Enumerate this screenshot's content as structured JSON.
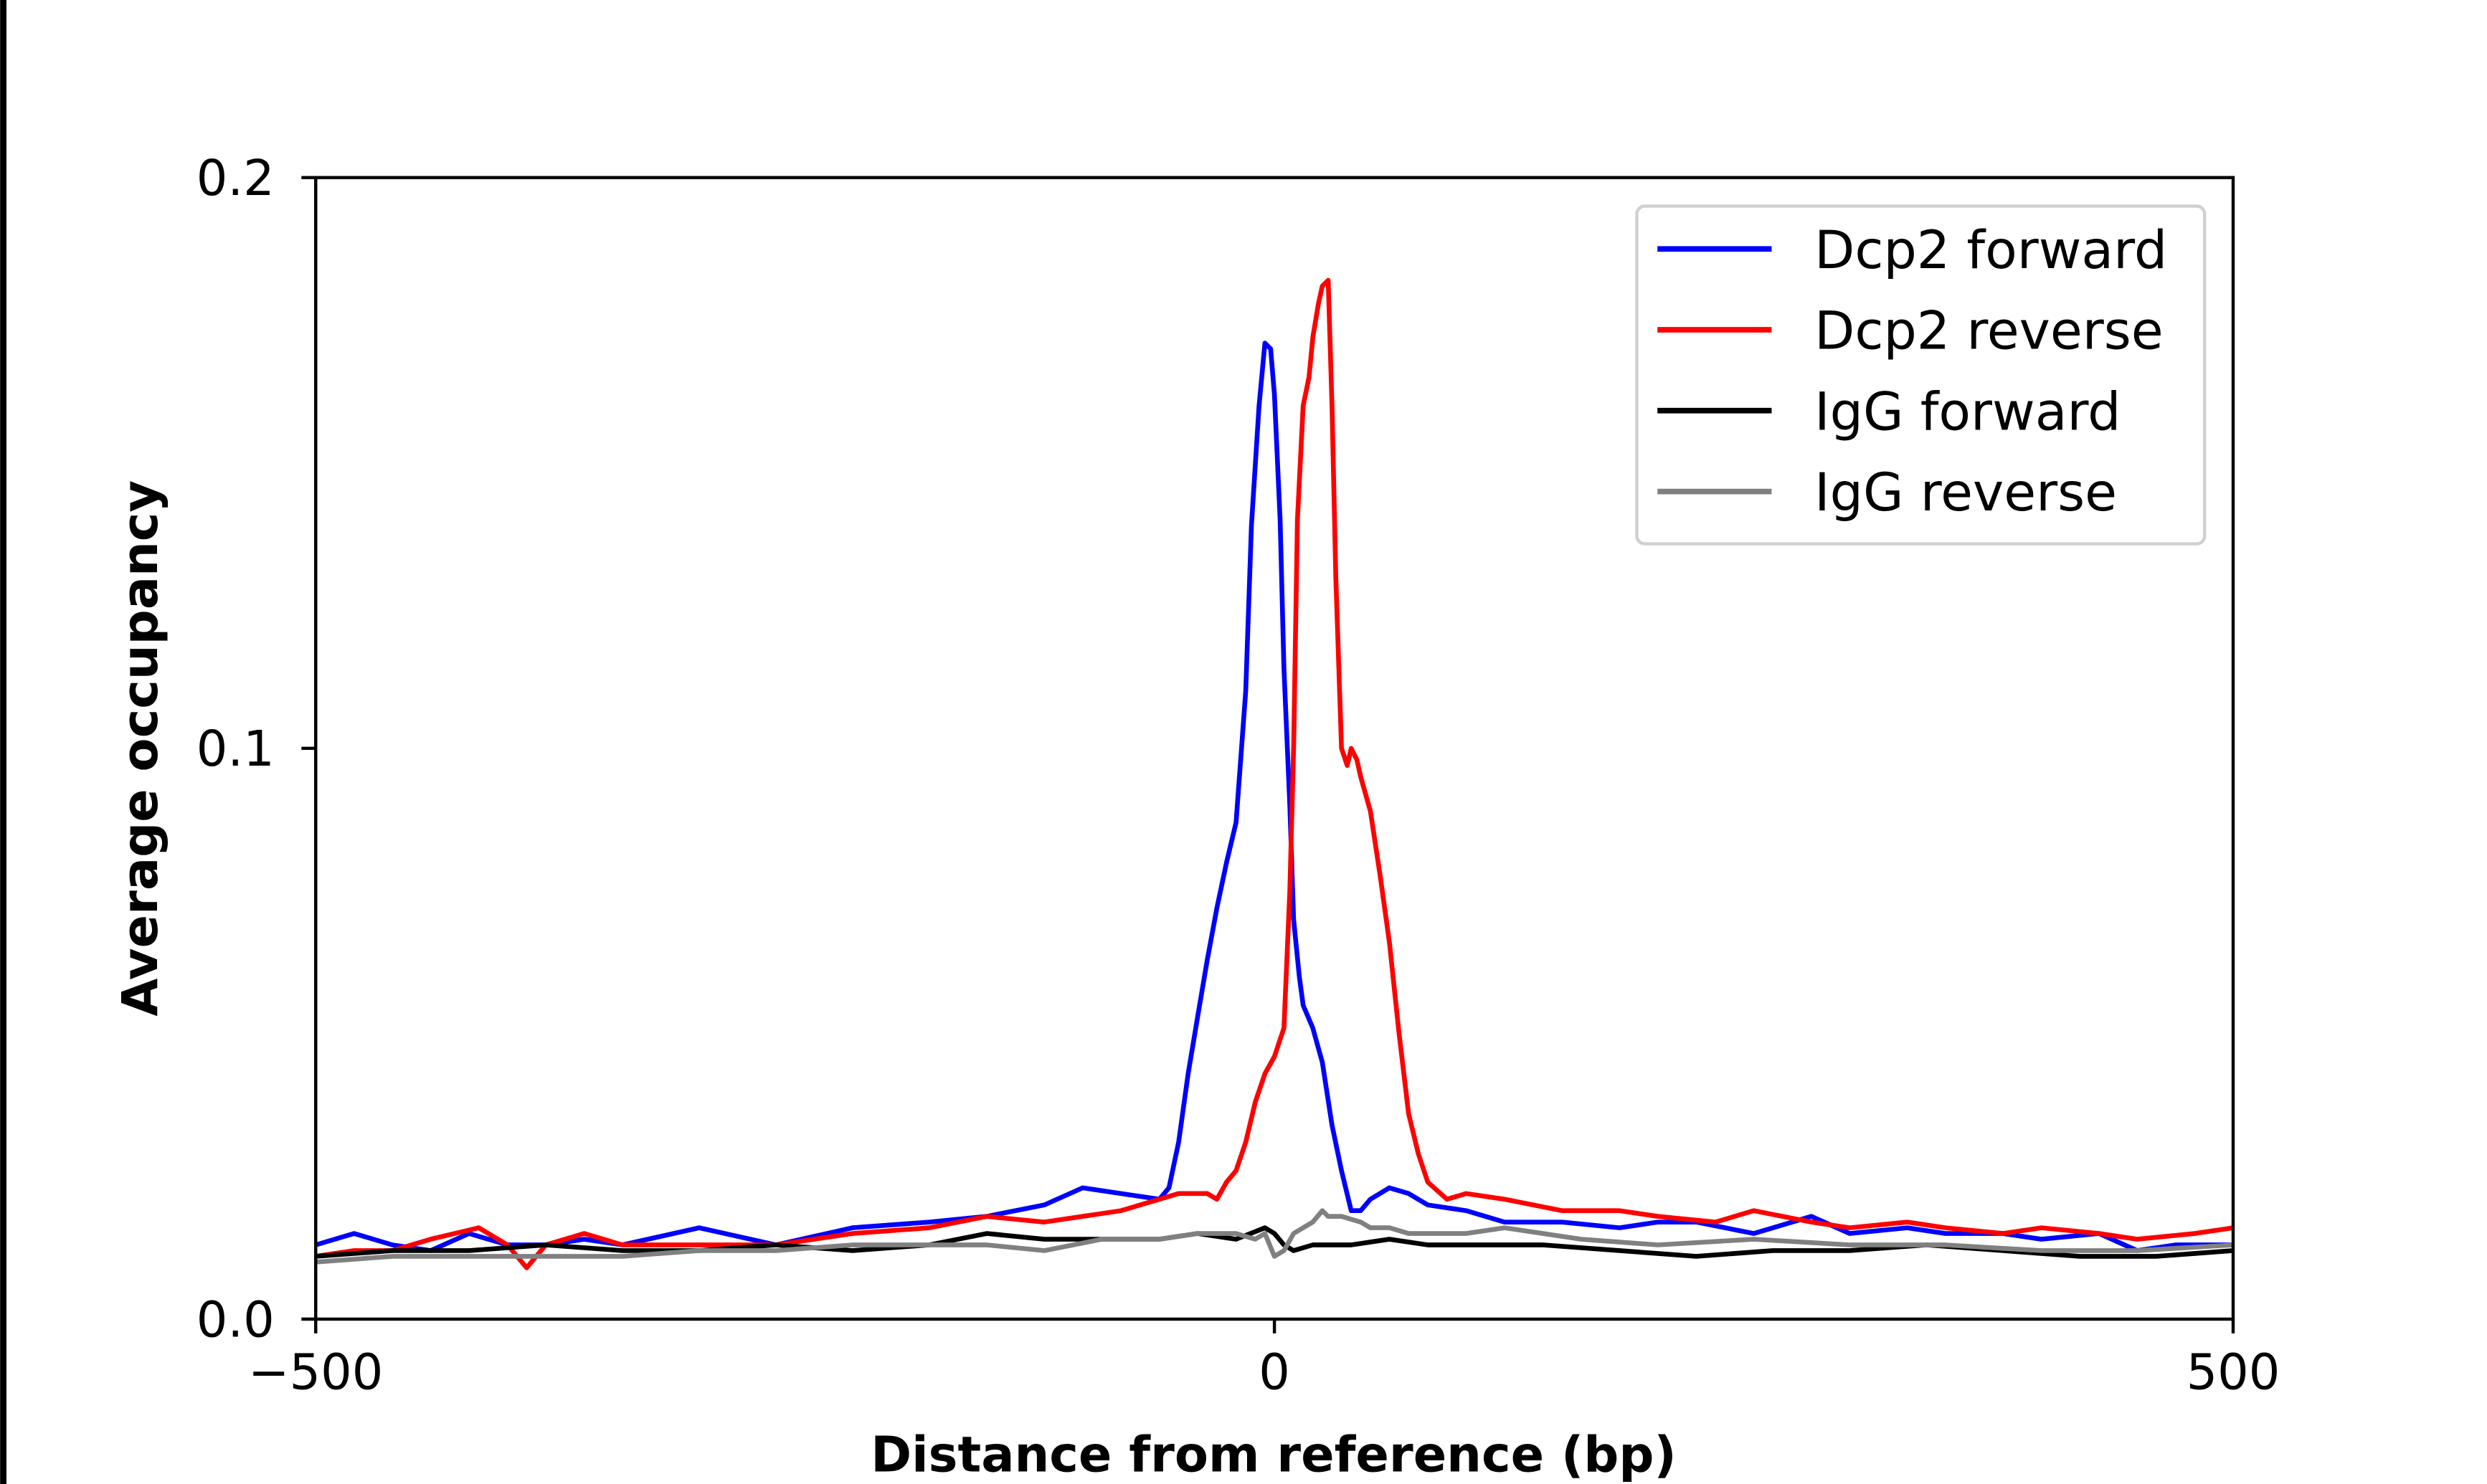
{
  "chart_data": {
    "type": "line",
    "title": "",
    "xlabel": "Distance from reference (bp)",
    "ylabel": "Average occupancy",
    "xlim": [
      -500,
      500
    ],
    "ylim": [
      0,
      0.2
    ],
    "xticks": [
      -500,
      0,
      500
    ],
    "xtick_labels": [
      "−500",
      "0",
      "500"
    ],
    "yticks": [
      0.0,
      0.1,
      0.2
    ],
    "ytick_labels": [
      "0.0",
      "0.1",
      "0.2"
    ],
    "grid": false,
    "legend_position": "top-right",
    "series": [
      {
        "name": "Dcp2 forward",
        "color": "#0000ff",
        "x": [
          -500,
          -480,
          -460,
          -440,
          -420,
          -400,
          -380,
          -360,
          -340,
          -300,
          -260,
          -220,
          -180,
          -150,
          -120,
          -100,
          -80,
          -60,
          -55,
          -50,
          -45,
          -40,
          -35,
          -30,
          -25,
          -20,
          -15,
          -12,
          -8,
          -5,
          -2,
          0,
          3,
          5,
          8,
          10,
          13,
          15,
          20,
          25,
          30,
          35,
          40,
          45,
          50,
          60,
          70,
          80,
          100,
          120,
          150,
          180,
          200,
          220,
          250,
          280,
          300,
          330,
          350,
          380,
          400,
          430,
          450,
          470,
          500
        ],
        "y": [
          0.013,
          0.015,
          0.013,
          0.012,
          0.015,
          0.013,
          0.013,
          0.014,
          0.013,
          0.016,
          0.013,
          0.016,
          0.017,
          0.018,
          0.02,
          0.023,
          0.022,
          0.021,
          0.023,
          0.031,
          0.043,
          0.053,
          0.063,
          0.072,
          0.08,
          0.087,
          0.11,
          0.139,
          0.16,
          0.171,
          0.17,
          0.162,
          0.14,
          0.114,
          0.09,
          0.07,
          0.06,
          0.055,
          0.051,
          0.045,
          0.034,
          0.026,
          0.019,
          0.019,
          0.021,
          0.023,
          0.022,
          0.02,
          0.019,
          0.017,
          0.017,
          0.016,
          0.017,
          0.017,
          0.015,
          0.018,
          0.015,
          0.016,
          0.015,
          0.015,
          0.014,
          0.015,
          0.012,
          0.013,
          0.013
        ]
      },
      {
        "name": "Dcp2 reverse",
        "color": "#ff0000",
        "x": [
          -500,
          -480,
          -460,
          -440,
          -415,
          -400,
          -390,
          -380,
          -360,
          -340,
          -300,
          -260,
          -220,
          -180,
          -150,
          -120,
          -100,
          -80,
          -60,
          -50,
          -40,
          -35,
          -30,
          -25,
          -20,
          -15,
          -10,
          -5,
          0,
          3,
          5,
          8,
          10,
          12,
          15,
          18,
          20,
          23,
          25,
          28,
          30,
          32,
          35,
          38,
          40,
          43,
          45,
          50,
          55,
          60,
          65,
          70,
          75,
          80,
          90,
          100,
          120,
          150,
          180,
          200,
          230,
          250,
          280,
          300,
          330,
          350,
          380,
          400,
          430,
          450,
          480,
          500
        ],
        "y": [
          0.011,
          0.012,
          0.012,
          0.014,
          0.016,
          0.013,
          0.009,
          0.013,
          0.015,
          0.013,
          0.013,
          0.013,
          0.015,
          0.016,
          0.018,
          0.017,
          0.018,
          0.019,
          0.021,
          0.022,
          0.022,
          0.022,
          0.021,
          0.024,
          0.026,
          0.031,
          0.038,
          0.043,
          0.046,
          0.049,
          0.051,
          0.075,
          0.1,
          0.14,
          0.16,
          0.165,
          0.172,
          0.178,
          0.181,
          0.182,
          0.16,
          0.13,
          0.1,
          0.097,
          0.1,
          0.098,
          0.095,
          0.089,
          0.078,
          0.066,
          0.05,
          0.036,
          0.029,
          0.024,
          0.021,
          0.022,
          0.021,
          0.019,
          0.019,
          0.018,
          0.017,
          0.019,
          0.017,
          0.016,
          0.017,
          0.016,
          0.015,
          0.016,
          0.015,
          0.014,
          0.015,
          0.016
        ]
      },
      {
        "name": "IgG forward",
        "color": "#000000",
        "x": [
          -500,
          -460,
          -420,
          -380,
          -340,
          -300,
          -260,
          -220,
          -180,
          -150,
          -120,
          -90,
          -60,
          -40,
          -20,
          -5,
          0,
          5,
          10,
          20,
          40,
          60,
          80,
          100,
          140,
          180,
          220,
          260,
          300,
          340,
          380,
          420,
          460,
          500
        ],
        "y": [
          0.011,
          0.012,
          0.012,
          0.013,
          0.012,
          0.012,
          0.013,
          0.012,
          0.013,
          0.015,
          0.014,
          0.014,
          0.014,
          0.015,
          0.014,
          0.016,
          0.015,
          0.013,
          0.012,
          0.013,
          0.013,
          0.014,
          0.013,
          0.013,
          0.013,
          0.012,
          0.011,
          0.012,
          0.012,
          0.013,
          0.012,
          0.011,
          0.011,
          0.012
        ]
      },
      {
        "name": "IgG reverse",
        "color": "#808080",
        "x": [
          -500,
          -460,
          -420,
          -380,
          -340,
          -300,
          -260,
          -220,
          -180,
          -150,
          -120,
          -90,
          -60,
          -40,
          -20,
          -10,
          -5,
          0,
          5,
          10,
          15,
          20,
          25,
          28,
          35,
          45,
          50,
          60,
          70,
          80,
          100,
          120,
          140,
          160,
          200,
          250,
          300,
          350,
          400,
          450,
          500
        ],
        "y": [
          0.01,
          0.011,
          0.011,
          0.011,
          0.011,
          0.012,
          0.012,
          0.013,
          0.013,
          0.013,
          0.012,
          0.014,
          0.014,
          0.015,
          0.015,
          0.014,
          0.015,
          0.011,
          0.012,
          0.015,
          0.016,
          0.017,
          0.019,
          0.018,
          0.018,
          0.017,
          0.016,
          0.016,
          0.015,
          0.015,
          0.015,
          0.016,
          0.015,
          0.014,
          0.013,
          0.014,
          0.013,
          0.013,
          0.012,
          0.012,
          0.013
        ]
      }
    ]
  }
}
